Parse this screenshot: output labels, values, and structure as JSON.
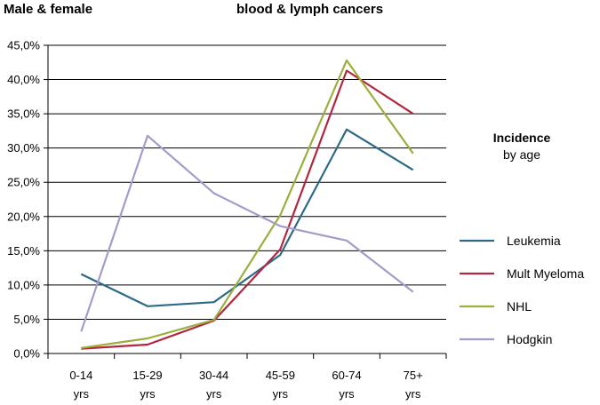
{
  "chart_data": {
    "type": "line",
    "title_left": "Male & female",
    "title_center": "blood & lymph cancers",
    "side_title": {
      "line1": "Incidence",
      "line2": "by age"
    },
    "categories": [
      {
        "line1": "0-14",
        "line2": "yrs"
      },
      {
        "line1": "15-29",
        "line2": "yrs"
      },
      {
        "line1": "30-44",
        "line2": "yrs"
      },
      {
        "line1": "45-59",
        "line2": "yrs"
      },
      {
        "line1": "60-74",
        "line2": "yrs"
      },
      {
        "line1": "75+",
        "line2": "yrs"
      }
    ],
    "y_ticks": [
      "0,0%",
      "5,0%",
      "10,0%",
      "15,0%",
      "20,0%",
      "25,0%",
      "30,0%",
      "35,0%",
      "40,0%",
      "45,0%"
    ],
    "ylim": [
      0,
      45
    ],
    "grid": true,
    "legend_position": "right",
    "series": [
      {
        "name": "Leukemia",
        "color": "#2E6A85",
        "values": [
          11.6,
          6.9,
          7.5,
          14.4,
          32.7,
          26.8
        ]
      },
      {
        "name": "Mult Myeloma",
        "color": "#B0273F",
        "values": [
          0.7,
          1.3,
          4.8,
          15.2,
          41.3,
          35.0
        ]
      },
      {
        "name": "NHL",
        "color": "#9BAE3E",
        "values": [
          0.8,
          2.2,
          4.9,
          20.2,
          42.8,
          29.2
        ]
      },
      {
        "name": "Hodgkin",
        "color": "#A39BC9",
        "values": [
          3.2,
          31.8,
          23.4,
          18.6,
          16.5,
          9.0
        ]
      }
    ]
  }
}
